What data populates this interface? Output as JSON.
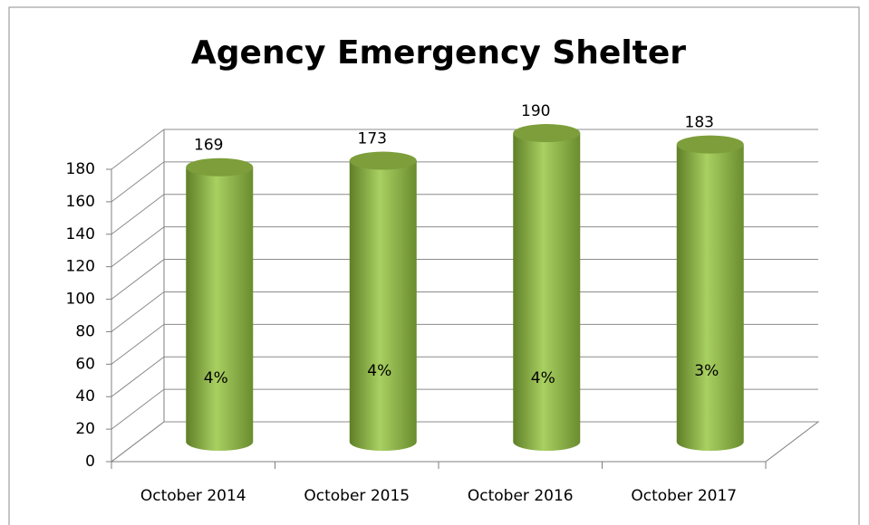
{
  "chart_data": {
    "type": "cylinder",
    "title": "Agency Emergency Shelter",
    "categories": [
      "October 2014",
      "October 2015",
      "October 2016",
      "October 2017"
    ],
    "values": [
      169,
      173,
      190,
      183
    ],
    "annotations": [
      "4%",
      "4%",
      "4%",
      "3%"
    ],
    "color": "#9bbb59",
    "ylim": [
      0,
      180
    ],
    "yticks": [
      0,
      20,
      40,
      60,
      80,
      100,
      120,
      140,
      160,
      180
    ],
    "grid": true
  }
}
